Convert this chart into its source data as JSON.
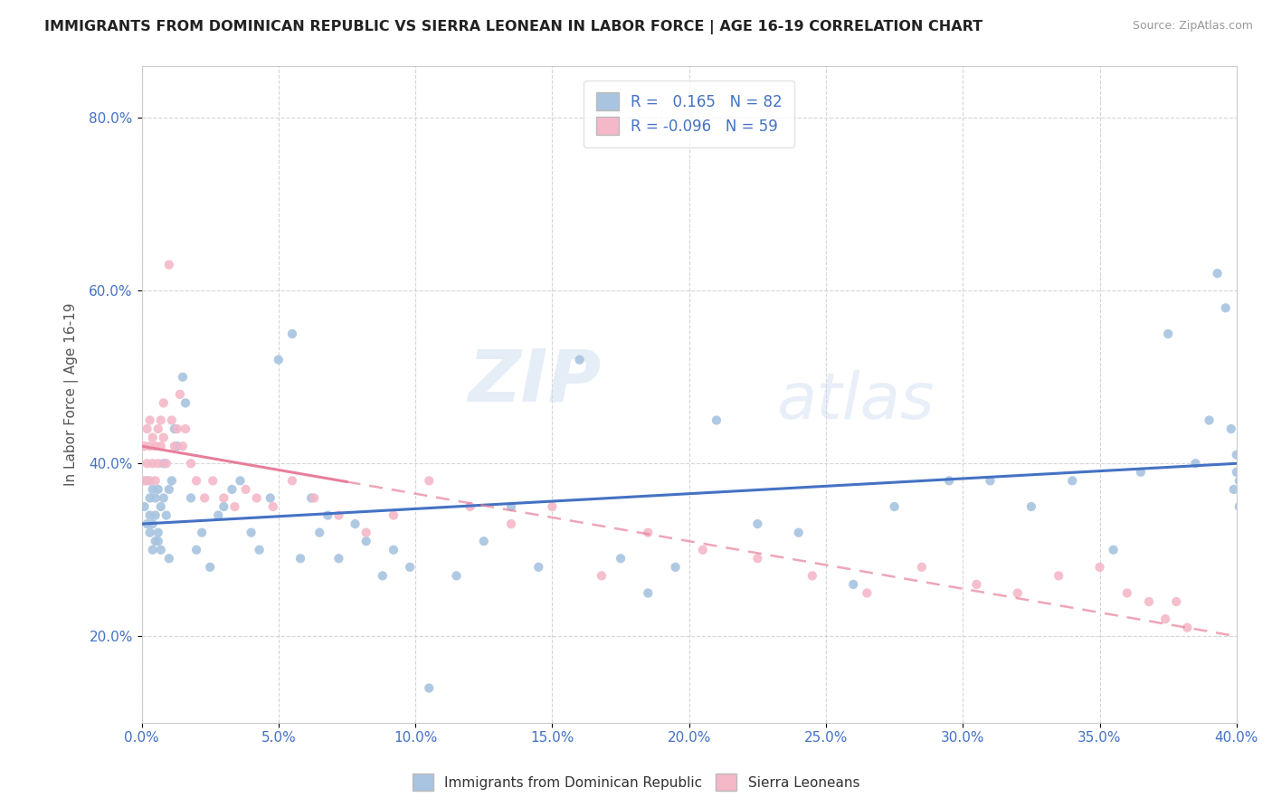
{
  "title": "IMMIGRANTS FROM DOMINICAN REPUBLIC VS SIERRA LEONEAN IN LABOR FORCE | AGE 16-19 CORRELATION CHART",
  "source": "Source: ZipAtlas.com",
  "ylabel": "In Labor Force | Age 16-19",
  "xlim": [
    0.0,
    0.4
  ],
  "ylim": [
    0.1,
    0.86
  ],
  "xticks": [
    0.0,
    0.05,
    0.1,
    0.15,
    0.2,
    0.25,
    0.3,
    0.35,
    0.4
  ],
  "yticks": [
    0.2,
    0.4,
    0.6,
    0.8
  ],
  "series1_color": "#a8c4e0",
  "series2_color": "#f4b8c8",
  "line1_color": "#4472c4",
  "line2_color": "#e87f9a",
  "R1": 0.165,
  "N1": 82,
  "R2": -0.096,
  "N2": 59,
  "legend_label1": "Immigrants from Dominican Republic",
  "legend_label2": "Sierra Leoneans",
  "watermark_zip": "ZIP",
  "watermark_atlas": "atlas",
  "background_color": "#ffffff",
  "series1_x": [
    0.001,
    0.002,
    0.002,
    0.003,
    0.003,
    0.003,
    0.004,
    0.004,
    0.004,
    0.005,
    0.005,
    0.005,
    0.006,
    0.006,
    0.006,
    0.007,
    0.007,
    0.008,
    0.008,
    0.009,
    0.01,
    0.01,
    0.011,
    0.012,
    0.013,
    0.015,
    0.016,
    0.018,
    0.02,
    0.022,
    0.025,
    0.028,
    0.03,
    0.033,
    0.036,
    0.04,
    0.043,
    0.047,
    0.05,
    0.055,
    0.058,
    0.062,
    0.065,
    0.068,
    0.072,
    0.078,
    0.082,
    0.088,
    0.092,
    0.098,
    0.105,
    0.115,
    0.125,
    0.135,
    0.145,
    0.16,
    0.175,
    0.185,
    0.195,
    0.21,
    0.225,
    0.24,
    0.26,
    0.275,
    0.295,
    0.31,
    0.325,
    0.34,
    0.355,
    0.365,
    0.375,
    0.385,
    0.39,
    0.393,
    0.396,
    0.398,
    0.399,
    0.4,
    0.4,
    0.401,
    0.401,
    0.402
  ],
  "series1_y": [
    0.35,
    0.33,
    0.38,
    0.32,
    0.36,
    0.34,
    0.3,
    0.37,
    0.33,
    0.31,
    0.36,
    0.34,
    0.32,
    0.37,
    0.31,
    0.35,
    0.3,
    0.4,
    0.36,
    0.34,
    0.37,
    0.29,
    0.38,
    0.44,
    0.42,
    0.5,
    0.47,
    0.36,
    0.3,
    0.32,
    0.28,
    0.34,
    0.35,
    0.37,
    0.38,
    0.32,
    0.3,
    0.36,
    0.52,
    0.55,
    0.29,
    0.36,
    0.32,
    0.34,
    0.29,
    0.33,
    0.31,
    0.27,
    0.3,
    0.28,
    0.14,
    0.27,
    0.31,
    0.35,
    0.28,
    0.52,
    0.29,
    0.25,
    0.28,
    0.45,
    0.33,
    0.32,
    0.26,
    0.35,
    0.38,
    0.38,
    0.35,
    0.38,
    0.3,
    0.39,
    0.55,
    0.4,
    0.45,
    0.62,
    0.58,
    0.44,
    0.37,
    0.39,
    0.41,
    0.35,
    0.38,
    0.36
  ],
  "series2_x": [
    0.001,
    0.001,
    0.002,
    0.002,
    0.003,
    0.003,
    0.003,
    0.004,
    0.004,
    0.005,
    0.005,
    0.006,
    0.006,
    0.007,
    0.007,
    0.008,
    0.008,
    0.009,
    0.01,
    0.011,
    0.012,
    0.013,
    0.014,
    0.015,
    0.016,
    0.018,
    0.02,
    0.023,
    0.026,
    0.03,
    0.034,
    0.038,
    0.042,
    0.048,
    0.055,
    0.063,
    0.072,
    0.082,
    0.092,
    0.105,
    0.12,
    0.135,
    0.15,
    0.168,
    0.185,
    0.205,
    0.225,
    0.245,
    0.265,
    0.285,
    0.305,
    0.32,
    0.335,
    0.35,
    0.36,
    0.368,
    0.374,
    0.378,
    0.382
  ],
  "series2_y": [
    0.42,
    0.38,
    0.44,
    0.4,
    0.42,
    0.45,
    0.38,
    0.4,
    0.43,
    0.42,
    0.38,
    0.44,
    0.4,
    0.45,
    0.42,
    0.43,
    0.47,
    0.4,
    0.63,
    0.45,
    0.42,
    0.44,
    0.48,
    0.42,
    0.44,
    0.4,
    0.38,
    0.36,
    0.38,
    0.36,
    0.35,
    0.37,
    0.36,
    0.35,
    0.38,
    0.36,
    0.34,
    0.32,
    0.34,
    0.38,
    0.35,
    0.33,
    0.35,
    0.27,
    0.32,
    0.3,
    0.29,
    0.27,
    0.25,
    0.28,
    0.26,
    0.25,
    0.27,
    0.28,
    0.25,
    0.24,
    0.22,
    0.24,
    0.21
  ]
}
